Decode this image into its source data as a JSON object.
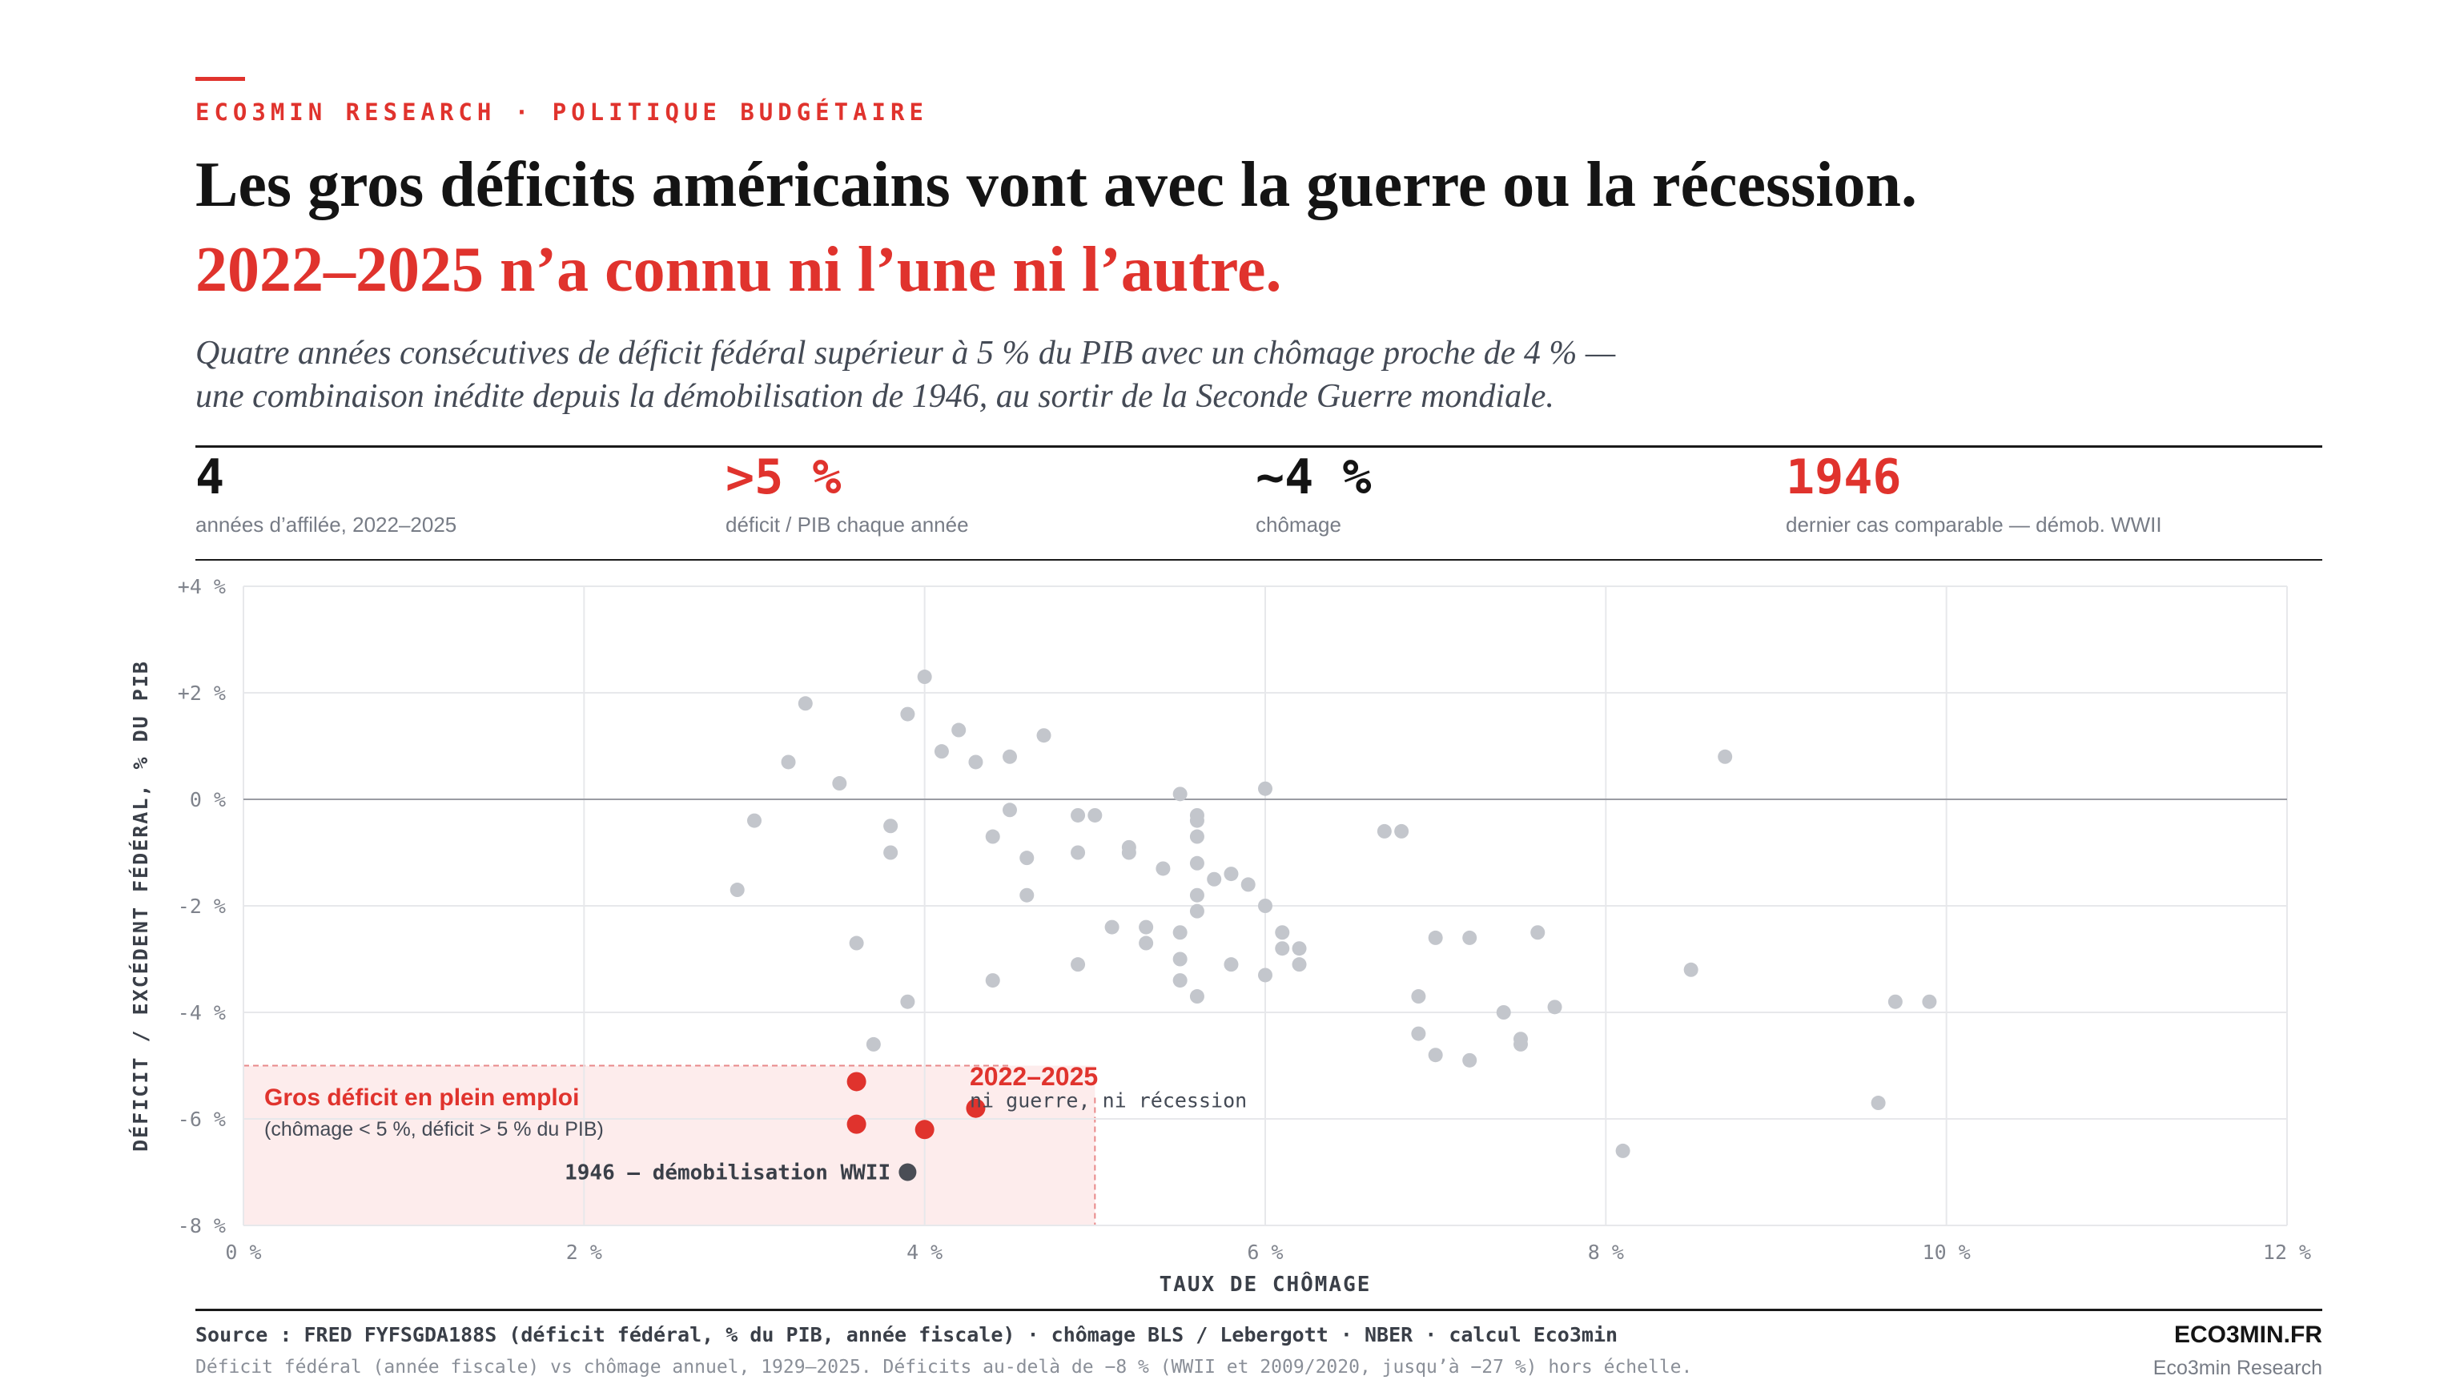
{
  "header": {
    "kicker": "ECO3MIN RESEARCH · POLITIQUE BUDGÉTAIRE",
    "title_line1": "Les gros déficits américains vont avec la guerre ou la récession.",
    "title_line2": "2022–2025 n’a connu ni l’une ni l’autre.",
    "subtitle_line1": "Quatre années consécutives de déficit fédéral supérieur à 5 % du PIB avec un chômage proche de 4 % —",
    "subtitle_line2": "une combinaison inédite depuis la démobilisation de 1946, au sortir de la Seconde Guerre mondiale."
  },
  "stats": [
    {
      "value": "4",
      "label": "années d’affilée, 2022–2025",
      "accent": false
    },
    {
      "value": ">5 %",
      "label": "déficit / PIB chaque année",
      "accent": true
    },
    {
      "value": "~4 %",
      "label": "chômage",
      "accent": false
    },
    {
      "value": "1946",
      "label": "dernier cas comparable — démob. WWII",
      "accent": true
    }
  ],
  "colors": {
    "accent": "#e0332d",
    "grey_point": "#c3c6cc",
    "highlight_1946": "#4a4d55",
    "zone_fill": "#fdecec"
  },
  "chart_data": {
    "type": "scatter",
    "xlabel": "TAUX DE CHÔMAGE",
    "ylabel": "DÉFICIT / EXCÉDENT FÉDÉRAL, % DU PIB",
    "xlim": [
      0,
      12
    ],
    "ylim": [
      -8,
      4
    ],
    "x_ticks": [
      {
        "v": 0,
        "label": "0 %"
      },
      {
        "v": 2,
        "label": "2 %"
      },
      {
        "v": 4,
        "label": "4 %"
      },
      {
        "v": 6,
        "label": "6 %"
      },
      {
        "v": 8,
        "label": "8 %"
      },
      {
        "v": 10,
        "label": "10 %"
      },
      {
        "v": 12,
        "label": "12 %"
      }
    ],
    "y_ticks": [
      {
        "v": 4,
        "label": "+4 %"
      },
      {
        "v": 2,
        "label": "+2 %"
      },
      {
        "v": 0,
        "label": "0 %"
      },
      {
        "v": -2,
        "label": "-2 %"
      },
      {
        "v": -4,
        "label": "-4 %"
      },
      {
        "v": -6,
        "label": "-6 %"
      },
      {
        "v": -8,
        "label": "-8 %"
      }
    ],
    "grid": true,
    "zone": {
      "x_max": 5,
      "y_max": -5,
      "title": "Gros déficit en plein emploi",
      "note": "(chômage < 5 %, déficit > 5 % du PIB)"
    },
    "series": [
      {
        "key": "other",
        "points": [
          [
            2.9,
            -1.7
          ],
          [
            3.0,
            -0.4
          ],
          [
            3.2,
            0.7
          ],
          [
            3.3,
            1.8
          ],
          [
            3.5,
            0.3
          ],
          [
            3.6,
            -2.7
          ],
          [
            3.7,
            -4.6
          ],
          [
            3.8,
            -0.5
          ],
          [
            3.8,
            -1.0
          ],
          [
            3.9,
            1.6
          ],
          [
            3.9,
            -3.8
          ],
          [
            4.0,
            2.3
          ],
          [
            4.1,
            0.9
          ],
          [
            4.2,
            1.3
          ],
          [
            4.3,
            0.7
          ],
          [
            4.4,
            -0.7
          ],
          [
            4.4,
            -3.4
          ],
          [
            4.5,
            0.8
          ],
          [
            4.5,
            -0.2
          ],
          [
            4.6,
            -1.1
          ],
          [
            4.6,
            -1.8
          ],
          [
            4.7,
            1.2
          ],
          [
            4.9,
            -0.3
          ],
          [
            4.9,
            -1.0
          ],
          [
            4.9,
            -3.1
          ],
          [
            5.0,
            -0.3
          ],
          [
            5.1,
            -2.4
          ],
          [
            5.2,
            -0.9
          ],
          [
            5.2,
            -1.0
          ],
          [
            5.3,
            -2.4
          ],
          [
            5.3,
            -2.7
          ],
          [
            5.4,
            -1.3
          ],
          [
            5.5,
            0.1
          ],
          [
            5.5,
            -2.5
          ],
          [
            5.5,
            -3.0
          ],
          [
            5.5,
            -3.4
          ],
          [
            5.6,
            -0.3
          ],
          [
            5.6,
            -0.4
          ],
          [
            5.6,
            -0.7
          ],
          [
            5.6,
            -1.2
          ],
          [
            5.6,
            -1.8
          ],
          [
            5.6,
            -2.1
          ],
          [
            5.6,
            -3.7
          ],
          [
            5.7,
            -1.5
          ],
          [
            5.8,
            -1.4
          ],
          [
            5.8,
            -3.1
          ],
          [
            5.9,
            -1.6
          ],
          [
            6.0,
            0.2
          ],
          [
            6.0,
            -2.0
          ],
          [
            6.0,
            -3.3
          ],
          [
            6.1,
            -2.5
          ],
          [
            6.1,
            -2.8
          ],
          [
            6.2,
            -2.8
          ],
          [
            6.2,
            -3.1
          ],
          [
            6.7,
            -0.6
          ],
          [
            6.8,
            -0.6
          ],
          [
            6.9,
            -3.7
          ],
          [
            6.9,
            -4.4
          ],
          [
            7.0,
            -2.6
          ],
          [
            7.0,
            -4.8
          ],
          [
            7.2,
            -2.6
          ],
          [
            7.2,
            -4.9
          ],
          [
            7.4,
            -4.0
          ],
          [
            7.5,
            -4.5
          ],
          [
            7.5,
            -4.6
          ],
          [
            7.6,
            -2.5
          ],
          [
            7.7,
            -3.9
          ],
          [
            8.1,
            -6.6
          ],
          [
            8.5,
            -3.2
          ],
          [
            8.7,
            0.8
          ],
          [
            9.6,
            -5.7
          ],
          [
            9.7,
            -3.8
          ],
          [
            9.9,
            -3.8
          ]
        ]
      },
      {
        "key": "2022–2025",
        "points": [
          [
            3.6,
            -5.3
          ],
          [
            3.6,
            -6.1
          ],
          [
            4.0,
            -6.2
          ],
          [
            4.3,
            -5.8
          ]
        ]
      },
      {
        "key": "1946",
        "points": [
          [
            3.9,
            -7.0
          ]
        ]
      }
    ],
    "annotations": [
      {
        "text": "2022–2025",
        "at": [
          4.5,
          -5.1
        ]
      },
      {
        "text": "ni guerre, ni récession",
        "at": [
          4.5,
          -5.6
        ]
      },
      {
        "text": "1946 — démobilisation WWII",
        "at": [
          3.8,
          -7.0
        ]
      }
    ]
  },
  "footer": {
    "source": "Source : FRED FYFSGDA188S (déficit fédéral, % du PIB, année fiscale) · chômage BLS / Lebergott · NBER · calcul Eco3min",
    "note": "Déficit fédéral (année fiscale) vs chômage annuel, 1929–2025. Déficits au-delà de −8 % (WWII et 2009/2020, jusqu’à −27 %) hors échelle.",
    "brand": "ECO3MIN.FR",
    "brand_sub": "Eco3min Research"
  }
}
